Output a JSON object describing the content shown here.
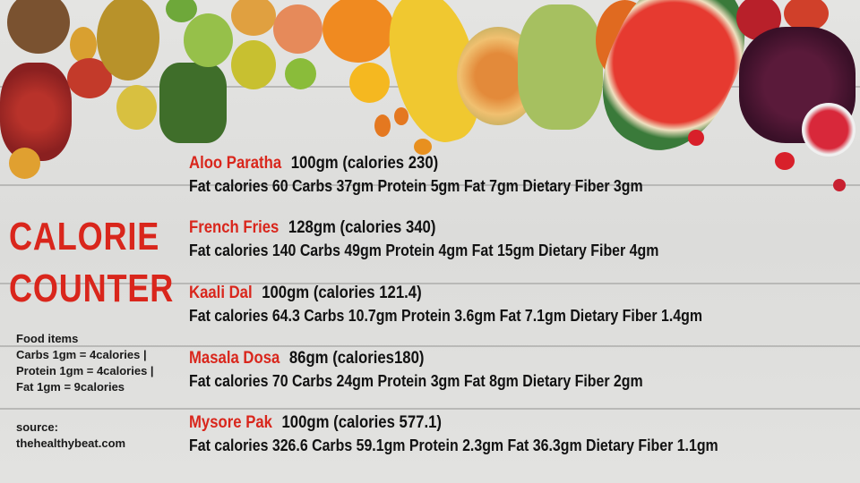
{
  "title": [
    "CALORIE",
    "COUNTER"
  ],
  "notes": {
    "lines": [
      "Food items",
      "Carbs 1gm = 4calories |",
      "Protein 1gm = 4calories |",
      "Fat 1gm = 9calories"
    ],
    "source_label": "source:",
    "source": "thehealthybeat.com"
  },
  "colors": {
    "accent": "#d9261c",
    "text": "#111111"
  },
  "items": [
    {
      "name": "Aloo Paratha",
      "summary": "100gm (calories 230)",
      "detail": "Fat calories 60 Carbs 37gm Protein 5gm Fat 7gm Dietary Fiber 3gm"
    },
    {
      "name": "French Fries",
      "summary": "128gm (calories 340)",
      "detail": "Fat calories 140 Carbs 49gm Protein 4gm Fat 15gm Dietary Fiber 4gm"
    },
    {
      "name": "Kaali Dal",
      "summary": "100gm (calories 121.4)",
      "detail": "Fat calories 64.3 Carbs 10.7gm Protein 3.6gm Fat 7.1gm Dietary Fiber 1.4gm"
    },
    {
      "name": "Masala Dosa",
      "summary": "86gm (calories180)",
      "detail": "Fat calories 70 Carbs 24gm Protein 3gm Fat 8gm Dietary Fiber 2gm"
    },
    {
      "name": "Mysore Pak",
      "summary": "100gm (calories 577.1)",
      "detail": "Fat calories 326.6 Carbs 59.1gm Protein 2.3gm Fat 36.3gm Dietary Fiber 1.1gm"
    }
  ]
}
